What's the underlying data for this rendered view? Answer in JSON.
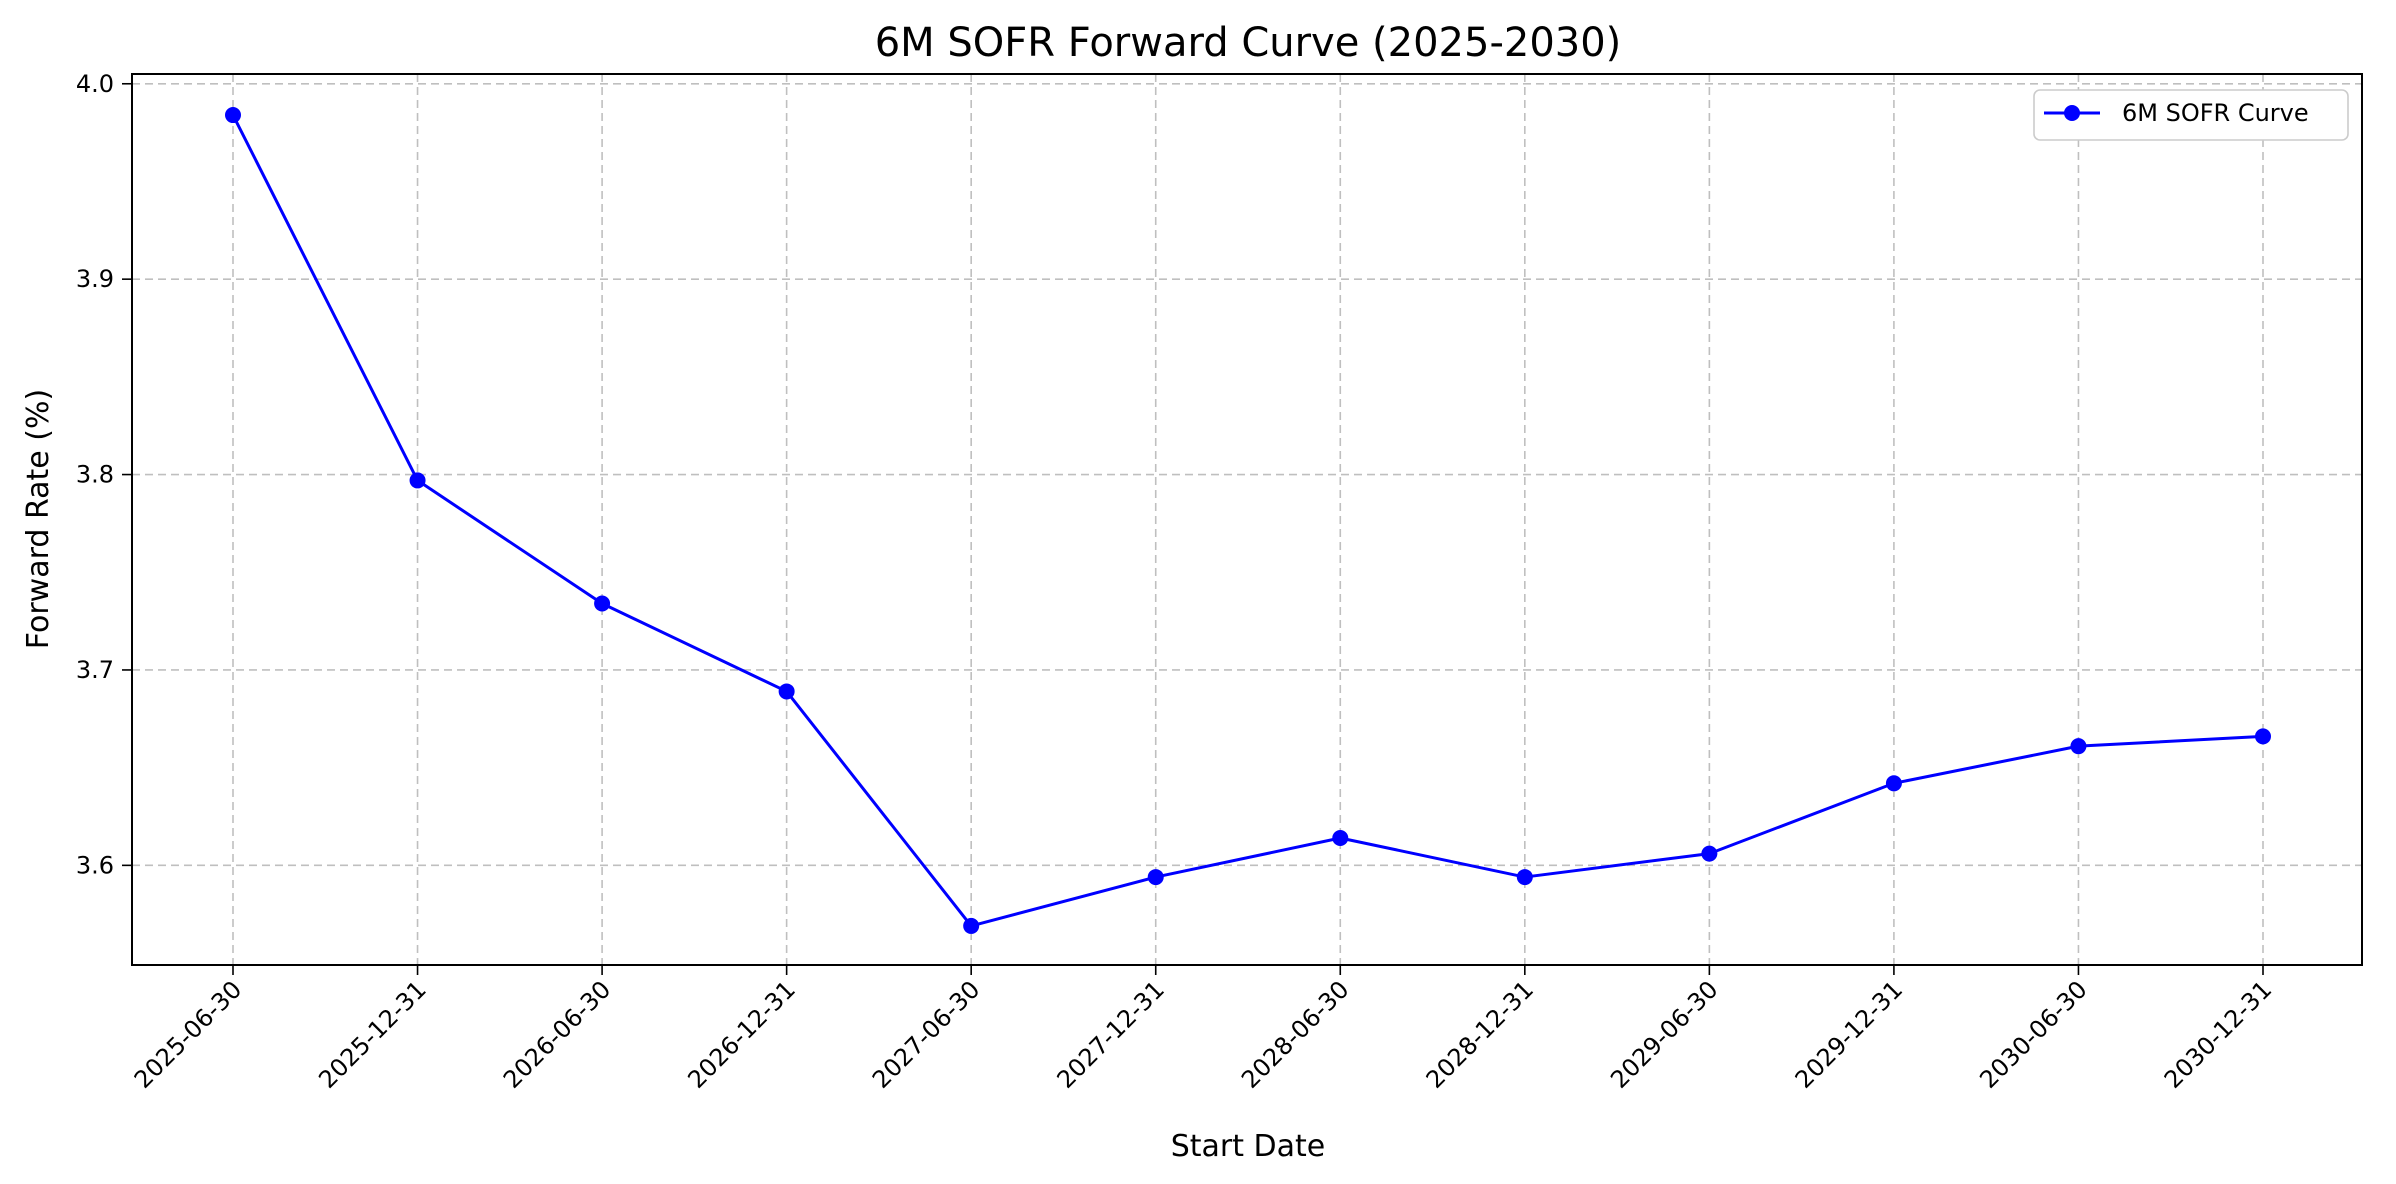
{
  "chart_data": {
    "type": "line",
    "title": "6M SOFR Forward Curve (2025-2030)",
    "xlabel": "Start Date",
    "ylabel": "Forward Rate (%)",
    "x": [
      "2025-06-30",
      "2025-12-31",
      "2026-06-30",
      "2026-12-31",
      "2027-06-30",
      "2027-12-31",
      "2028-06-30",
      "2028-12-31",
      "2029-06-30",
      "2029-12-31",
      "2030-06-30",
      "2030-12-31"
    ],
    "series": [
      {
        "name": "6M SOFR Curve",
        "color": "#0000ff",
        "marker": "circle",
        "values": [
          3.984,
          3.797,
          3.734,
          3.689,
          3.569,
          3.594,
          3.614,
          3.594,
          3.606,
          3.642,
          3.661,
          3.666
        ]
      }
    ],
    "ylim": [
      3.549,
      4.005
    ],
    "yticks": [
      "3.6",
      "3.7",
      "3.8",
      "3.9",
      "4.0"
    ],
    "grid": true,
    "legend_position": "top-right"
  }
}
